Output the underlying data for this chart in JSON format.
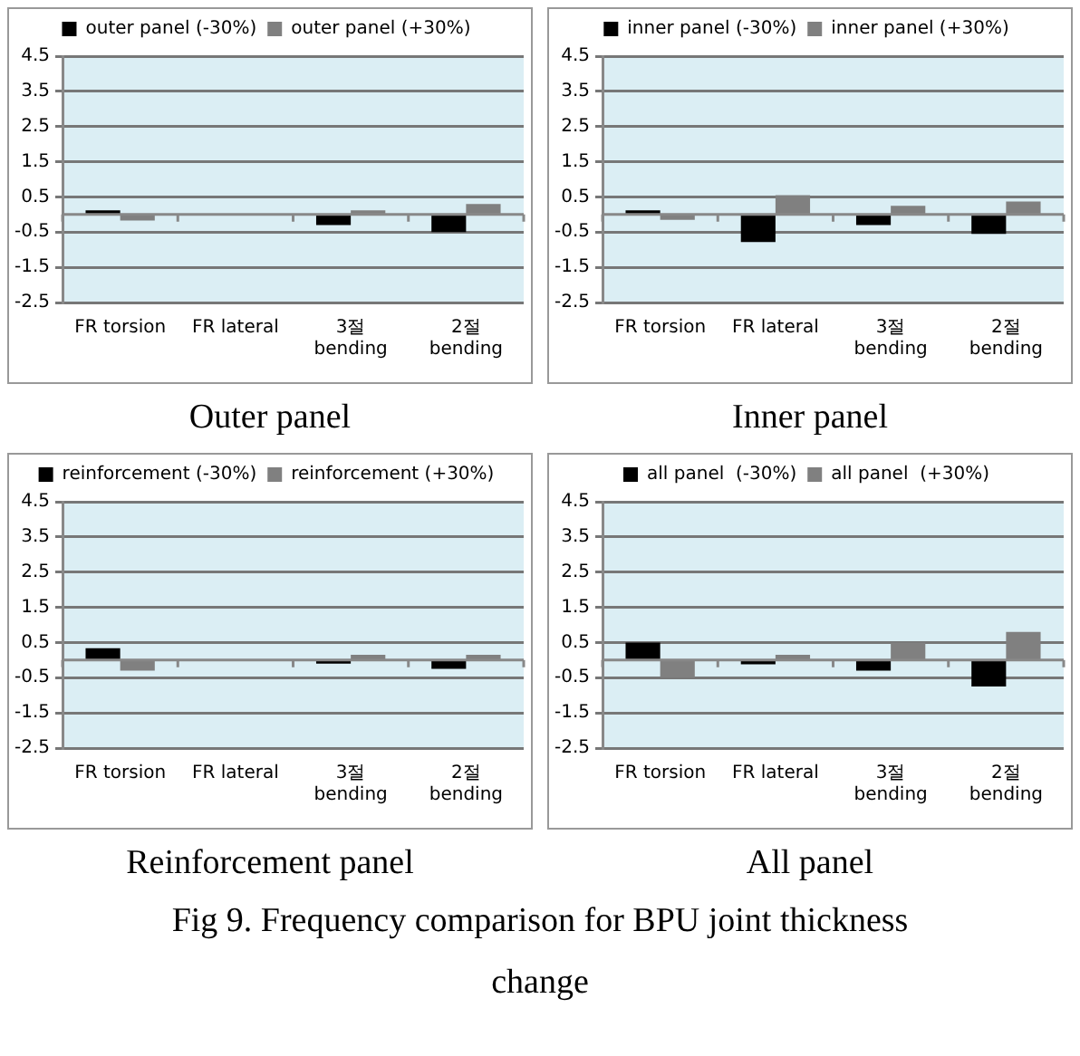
{
  "chart_data": [
    {
      "type": "bar",
      "title": "Outer panel",
      "categories": [
        "FR torsion",
        "FR lateral",
        "3절\nbending",
        "2절\nbending"
      ],
      "ylim": [
        -2.5,
        4.5
      ],
      "yticks": [
        -2.5,
        -1.5,
        -0.5,
        0.5,
        1.5,
        2.5,
        3.5,
        4.5
      ],
      "grid": "y",
      "legend": "top",
      "series": [
        {
          "name": "outer panel (-30%)",
          "color": "#000000",
          "values": [
            0.12,
            null,
            -0.3,
            -0.5
          ]
        },
        {
          "name": "outer panel (+30%)",
          "color": "#808080",
          "values": [
            -0.17,
            0,
            0.12,
            0.3
          ]
        }
      ]
    },
    {
      "type": "bar",
      "title": "Inner panel",
      "categories": [
        "FR torsion",
        "FR lateral",
        "3절\nbending",
        "2절\nbending"
      ],
      "ylim": [
        -2.5,
        4.5
      ],
      "yticks": [
        -2.5,
        -1.5,
        -0.5,
        0.5,
        1.5,
        2.5,
        3.5,
        4.5
      ],
      "grid": "y",
      "legend": "top",
      "series": [
        {
          "name": "inner panel (-30%)",
          "color": "#000000",
          "values": [
            0.12,
            -0.78,
            -0.3,
            -0.55
          ]
        },
        {
          "name": "inner panel (+30%)",
          "color": "#808080",
          "values": [
            -0.15,
            0.55,
            0.25,
            0.37
          ]
        }
      ]
    },
    {
      "type": "bar",
      "title": "Reinforcement panel",
      "categories": [
        "FR torsion",
        "FR lateral",
        "3절\nbending",
        "2절\nbending"
      ],
      "ylim": [
        -2.5,
        4.5
      ],
      "yticks": [
        -2.5,
        -1.5,
        -0.5,
        0.5,
        1.5,
        2.5,
        3.5,
        4.5
      ],
      "grid": "y",
      "legend": "top",
      "series": [
        {
          "name": "reinforcement (-30%)",
          "color": "#000000",
          "values": [
            0.34,
            null,
            -0.1,
            -0.25
          ]
        },
        {
          "name": "reinforcement (+30%)",
          "color": "#808080",
          "values": [
            -0.3,
            0,
            0.15,
            0.15
          ]
        }
      ]
    },
    {
      "type": "bar",
      "title": "All panel",
      "categories": [
        "FR torsion",
        "FR lateral",
        "3절\nbending",
        "2절\nbending"
      ],
      "ylim": [
        -2.5,
        4.5
      ],
      "yticks": [
        -2.5,
        -1.5,
        -0.5,
        0.5,
        1.5,
        2.5,
        3.5,
        4.5
      ],
      "grid": "y",
      "legend": "top",
      "annotations": [
        "Fig 9. Frequency comparison for BPU joint thickness change"
      ],
      "series": [
        {
          "name": "all panel  (-30%)",
          "color": "#000000",
          "values": [
            0.5,
            -0.12,
            -0.3,
            -0.75
          ]
        },
        {
          "name": "all panel  (+30%)",
          "color": "#808080",
          "values": [
            -0.5,
            0.15,
            0.5,
            0.8
          ]
        }
      ]
    }
  ]
}
